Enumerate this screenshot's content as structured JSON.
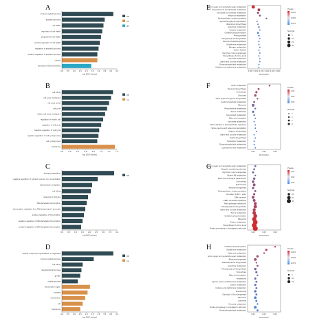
{
  "colors": {
    "BP": "#2f4a53",
    "CC": "#d8914a",
    "MF": "#2aa7c4",
    "axis": "#555555"
  },
  "chart_data": [
    {
      "panel": "A",
      "type": "bar",
      "legend": [
        "BP",
        "CC",
        "MF"
      ],
      "categories": [
        "immune system process",
        "apoptotic process",
        "cell death",
        "regulation of cell death",
        "programmed cell death",
        "positive regulation of cell death",
        "regulation of apoptotic process",
        "positive regulation of apoptotic process",
        "cytosol",
        "structural molecule activity"
      ],
      "values": [
        4.2,
        3.5,
        3.4,
        3.3,
        3.2,
        3.1,
        3.0,
        2.9,
        2.9,
        2.4
      ],
      "groups": [
        "BP",
        "BP",
        "BP",
        "BP",
        "BP",
        "BP",
        "BP",
        "BP",
        "CC",
        "MF"
      ],
      "ticks": [
        "0.0",
        "0.5",
        "1.0",
        "1.5",
        "2.0",
        "2.5",
        "3.0",
        "3.5",
        "4.0",
        "4.5"
      ],
      "xlim": [
        0,
        4.5
      ],
      "xlabel": "-log 10(P values)"
    },
    {
      "panel": "B",
      "type": "bar",
      "legend": [
        "BP",
        "CC"
      ],
      "categories": [
        "cell killing",
        "cell cycle checkpoint",
        "cell cycle arrest",
        "cell cycle",
        "mitotic cell cycle checkpoint",
        "regulation of mitotic cell",
        "regulation of cell cycle",
        "negative regulation of cell cycle",
        "negative regulation of cell cycle process",
        "cell cycle process",
        "membrane"
      ],
      "values": [
        1.3,
        1.25,
        1.2,
        1.15,
        1.1,
        1.05,
        1.0,
        0.95,
        0.93,
        0.9,
        1.35
      ],
      "groups": [
        "BP",
        "BP",
        "BP",
        "BP",
        "BP",
        "BP",
        "BP",
        "BP",
        "BP",
        "BP",
        "CC"
      ],
      "ticks": [
        "0.0",
        "0.2",
        "0.4",
        "0.6",
        "0.8",
        "1.0",
        "1.2",
        "1.4"
      ],
      "xlim": [
        0,
        1.4
      ],
      "xlabel": "-log 10(P values)"
    },
    {
      "panel": "C",
      "type": "bar",
      "legend": [
        "BP"
      ],
      "categories": [
        "biological regulation",
        "negative regulation of cytosolic calcium ion concentration",
        "alpha-tubulin acetylation",
        "cell killing",
        "response to stimulus",
        "DNA-templated transcription",
        "transcription regulation from RNA polymerase II promoter",
        "positive regulation of transcription",
        "negative regulation of DNA-templated transcription",
        "positive regulation of DNA-templated transcription"
      ],
      "values": [
        3.8,
        2.6,
        2.2,
        2.1,
        1.9,
        1.8,
        1.7,
        1.6,
        1.5,
        1.4
      ],
      "groups": [
        "BP",
        "BP",
        "BP",
        "BP",
        "BP",
        "BP",
        "BP",
        "BP",
        "BP",
        "BP"
      ],
      "ticks": [
        "0.0",
        "0.5",
        "1.0",
        "1.5",
        "2.0",
        "2.5",
        "3.0",
        "3.5",
        "4.0"
      ],
      "xlim": [
        0,
        4.0
      ],
      "xlabel": "-log10(P values)"
    },
    {
      "panel": "D",
      "type": "bar",
      "legend": [
        "BP",
        "CC"
      ],
      "categories": [
        "cellular component organization or biogenesis",
        "immune system process",
        "cell killing",
        "developmental process",
        "growth",
        "cellular process",
        "extracellular region",
        "synapse",
        "cell junction",
        "cell",
        "membrane"
      ],
      "values": [
        4.2,
        2.6,
        1.7,
        1.6,
        1.5,
        1.3,
        2.3,
        2.1,
        1.9,
        1.7,
        1.5
      ],
      "groups": [
        "BP",
        "BP",
        "BP",
        "BP",
        "BP",
        "BP",
        "CC",
        "CC",
        "CC",
        "CC",
        "CC"
      ],
      "ticks": [
        "0.0",
        "0.5",
        "1.0",
        "1.5",
        "2.0",
        "2.5",
        "3.0",
        "3.5",
        "4.0",
        "4.5"
      ],
      "xlim": [
        0,
        4.5
      ],
      "xlabel": "-log 10(P values)"
    },
    {
      "panel": "E",
      "type": "scatter",
      "xlabel": "Rich factor",
      "legend_titles": [
        "Pvalue",
        "Number"
      ],
      "gradient_ticks": [
        "0.025",
        "0.050",
        "0.075"
      ],
      "size_ticks": [
        "5",
        "10",
        "15",
        "20"
      ],
      "x_ticks": [
        "0.005",
        "0.010",
        "0.015",
        "0.020",
        "0.025",
        "0.030"
      ],
      "xlim": [
        0,
        0.035
      ],
      "points": [
        {
          "y": "Amino sugar and nucleotide sugar metabolism",
          "x": 0.006,
          "n": 12,
          "p": 0.01
        },
        {
          "y": "Glyoxylate and dicarboxylate metabolism",
          "x": 0.012,
          "n": 8,
          "p": 0.03
        },
        {
          "y": "Ascorbate and aldarate metabolism",
          "x": 0.011,
          "n": 5,
          "p": 0.04
        },
        {
          "y": "Fatty acid degradation",
          "x": 0.013,
          "n": 4,
          "p": 0.05
        },
        {
          "y": "Photosynthesis - antenna proteins",
          "x": 0.02,
          "n": 3,
          "p": 0.06
        },
        {
          "y": "Glycosaminoglycan degradation",
          "x": 0.01,
          "n": 2,
          "p": 0.07
        },
        {
          "y": "Ubiquinone biosynthesis",
          "x": 0.011,
          "n": 2,
          "p": 0.08
        },
        {
          "y": "Galactose metabolism",
          "x": 0.012,
          "n": 3,
          "p": 0.08
        },
        {
          "y": "Tyrosine metabolism",
          "x": 0.013,
          "n": 2,
          "p": 0.09
        },
        {
          "y": "Oxidative phosphorylation",
          "x": 0.011,
          "n": 4,
          "p": 0.09
        },
        {
          "y": "Photosynthesis",
          "x": 0.012,
          "n": 3,
          "p": 0.09
        },
        {
          "y": "Phenylpropanoid biosynthesis",
          "x": 0.013,
          "n": 2,
          "p": 0.09
        },
        {
          "y": "Pentose phosphate pathway",
          "x": 0.012,
          "n": 2,
          "p": 0.09
        },
        {
          "y": "Glutathione metabolism",
          "x": 0.012,
          "n": 2,
          "p": 0.09
        },
        {
          "y": "Nitrogen metabolism",
          "x": 0.013,
          "n": 2,
          "p": 0.09
        },
        {
          "y": "Carbon fixation",
          "x": 0.012,
          "n": 2,
          "p": 0.09
        },
        {
          "y": "Glycolysis / Gluconeogenesis",
          "x": 0.013,
          "n": 2,
          "p": 0.09
        },
        {
          "y": "Biosynthesis of amino acids",
          "x": 0.012,
          "n": 2,
          "p": 0.09
        },
        {
          "y": "Pyruvate metabolism",
          "x": 0.013,
          "n": 2,
          "p": 0.09
        },
        {
          "y": "Starch and sucrose metabolism",
          "x": 0.013,
          "n": 2,
          "p": 0.09
        },
        {
          "y": "Glycerophospholipid metabolism",
          "x": 0.012,
          "n": 2,
          "p": 0.09
        },
        {
          "y": "Cysteine and methionine metabolism",
          "x": 0.012,
          "n": 2,
          "p": 0.09
        }
      ]
    },
    {
      "panel": "F",
      "type": "scatter",
      "xlabel": "Rich factor",
      "legend_titles": [
        "Pvalue",
        "Number"
      ],
      "gradient_ticks": [
        "0.03",
        "0.06",
        "0.09"
      ],
      "size_ticks": [
        "2",
        "4",
        "6",
        "8"
      ],
      "x_ticks": [
        "0.02",
        "0.03",
        "0.04"
      ],
      "xlim": [
        0.015,
        0.045
      ],
      "points": [
        {
          "y": "Sulfur metabolism",
          "x": 0.035,
          "n": 3,
          "p": 0.02
        },
        {
          "y": "Flavonoid biosynthesis",
          "x": 0.025,
          "n": 4,
          "p": 0.03
        },
        {
          "y": "Endocytosis",
          "x": 0.023,
          "n": 5,
          "p": 0.04
        },
        {
          "y": "Glycolysis",
          "x": 0.022,
          "n": 6,
          "p": 0.04
        },
        {
          "y": "Other types of O-glycan biosynthesis",
          "x": 0.024,
          "n": 3,
          "p": 0.05
        },
        {
          "y": "Inositol phosphate metabolism",
          "x": 0.021,
          "n": 4,
          "p": 0.05
        },
        {
          "y": "Ribosome",
          "x": 0.02,
          "n": 8,
          "p": 0.06
        },
        {
          "y": "Phenylalanine metabolism",
          "x": 0.022,
          "n": 3,
          "p": 0.07
        },
        {
          "y": "Purine metabolism",
          "x": 0.02,
          "n": 5,
          "p": 0.07
        },
        {
          "y": "Glycerolipid metabolism",
          "x": 0.021,
          "n": 3,
          "p": 0.08
        },
        {
          "y": "Fatty acid elongation",
          "x": 0.022,
          "n": 2,
          "p": 0.08
        },
        {
          "y": "Ascorbate metabolism",
          "x": 0.021,
          "n": 2,
          "p": 0.08
        },
        {
          "y": "Carbon fixation in photosynthetic organisms",
          "x": 0.022,
          "n": 2,
          "p": 0.09
        },
        {
          "y": "Valine, leucine and isoleucine degradation",
          "x": 0.022,
          "n": 2,
          "p": 0.09
        },
        {
          "y": "Arginine biosynthesis",
          "x": 0.023,
          "n": 2,
          "p": 0.09
        },
        {
          "y": "Starch and sucrose metabolism",
          "x": 0.021,
          "n": 2,
          "p": 0.09
        },
        {
          "y": "Zeatin biosynthesis",
          "x": 0.022,
          "n": 2,
          "p": 0.09
        },
        {
          "y": "Tryptophan metabolism",
          "x": 0.021,
          "n": 2,
          "p": 0.09
        },
        {
          "y": "Glycerophospholipid metabolism",
          "x": 0.021,
          "n": 2,
          "p": 0.09
        },
        {
          "y": "Cyanoamino acid metabolism",
          "x": 0.022,
          "n": 2,
          "p": 0.09
        }
      ]
    },
    {
      "panel": "G",
      "type": "scatter",
      "xlabel": "Rich factor",
      "legend_titles": [
        "Pvalue",
        "Number"
      ],
      "gradient_ticks": [
        "0.02",
        "0.04",
        "0.06"
      ],
      "size_ticks": [
        "10",
        "20",
        "30"
      ],
      "x_ticks": [
        "0.02",
        "0.03",
        "0.04"
      ],
      "xlim": [
        0.015,
        0.045
      ],
      "points": [
        {
          "y": "Amino sugar and nucleotide sugar metabolism",
          "x": 0.022,
          "n": 4,
          "p": 0.07
        },
        {
          "y": "Ubiquitin mediated proteolysis",
          "x": 0.021,
          "n": 4,
          "p": 0.07
        },
        {
          "y": "Glycolysis / Gluconeogenesis",
          "x": 0.02,
          "n": 5,
          "p": 0.06
        },
        {
          "y": "Vitamin B6 metabolism",
          "x": 0.022,
          "n": 3,
          "p": 0.06
        },
        {
          "y": "Plant hormone signal transduction",
          "x": 0.021,
          "n": 6,
          "p": 0.06
        },
        {
          "y": "Endocytosis",
          "x": 0.02,
          "n": 7,
          "p": 0.05
        },
        {
          "y": "Spliceosome",
          "x": 0.021,
          "n": 8,
          "p": 0.05
        },
        {
          "y": "Ribosome biogenesis",
          "x": 0.02,
          "n": 6,
          "p": 0.05
        },
        {
          "y": "Photosynthesis - antenna proteins",
          "x": 0.022,
          "n": 4,
          "p": 0.05
        },
        {
          "y": "Circadian rhythm - plant",
          "x": 0.021,
          "n": 5,
          "p": 0.04
        },
        {
          "y": "RNA transport",
          "x": 0.02,
          "n": 9,
          "p": 0.04
        },
        {
          "y": "mRNA surveillance pathway",
          "x": 0.021,
          "n": 8,
          "p": 0.04
        },
        {
          "y": "Plant-pathogen interaction",
          "x": 0.022,
          "n": 10,
          "p": 0.03
        },
        {
          "y": "Phenylpropanoid biosynthesis",
          "x": 0.022,
          "n": 12,
          "p": 0.03
        },
        {
          "y": "Starch and sucrose metabolism",
          "x": 0.021,
          "n": 10,
          "p": 0.03
        },
        {
          "y": "Purine metabolism",
          "x": 0.021,
          "n": 14,
          "p": 0.02
        },
        {
          "y": "Oxidative phosphorylation",
          "x": 0.022,
          "n": 16,
          "p": 0.01
        },
        {
          "y": "Ribosome",
          "x": 0.021,
          "n": 20,
          "p": 0.01
        },
        {
          "y": "Carbon metabolism",
          "x": 0.022,
          "n": 22,
          "p": 0.005
        },
        {
          "y": "Biosynthesis of amino acids",
          "x": 0.021,
          "n": 24,
          "p": 0.004
        },
        {
          "y": "Protein processing in endoplasmic reticulum",
          "x": 0.022,
          "n": 26,
          "p": 0.003
        }
      ]
    },
    {
      "panel": "H",
      "type": "scatter",
      "xlabel": "Rich factor",
      "legend_titles": [
        "Pvalue",
        "Number"
      ],
      "gradient_ticks": [
        "0.025",
        "0.050",
        "0.075"
      ],
      "size_ticks": [
        "5",
        "10",
        "15"
      ],
      "x_ticks": [
        "0.02",
        "0.03",
        "0.04"
      ],
      "xlim": [
        0.015,
        0.045
      ],
      "points": [
        {
          "y": "Oxidative phosphorylation",
          "x": 0.04,
          "n": 3,
          "p": 0.01
        },
        {
          "y": "Glutathione metabolism",
          "x": 0.032,
          "n": 5,
          "p": 0.02
        },
        {
          "y": "Fatty acid metabolism",
          "x": 0.03,
          "n": 3,
          "p": 0.03
        },
        {
          "y": "Amino sugar and nucleotide sugar metabolism",
          "x": 0.024,
          "n": 6,
          "p": 0.04
        },
        {
          "y": "Ribosome biogenesis",
          "x": 0.022,
          "n": 8,
          "p": 0.04
        },
        {
          "y": "Sesquiterpenoid biosynthesis",
          "x": 0.023,
          "n": 3,
          "p": 0.05
        },
        {
          "y": "Galactose metabolism",
          "x": 0.024,
          "n": 4,
          "p": 0.05
        },
        {
          "y": "Phenylpropanoid biosynthesis",
          "x": 0.022,
          "n": 6,
          "p": 0.06
        },
        {
          "y": "Endocytosis",
          "x": 0.023,
          "n": 5,
          "p": 0.06
        },
        {
          "y": "Fatty acid elongation",
          "x": 0.024,
          "n": 3,
          "p": 0.07
        },
        {
          "y": "Proteasome",
          "x": 0.022,
          "n": 5,
          "p": 0.07
        },
        {
          "y": "Glycine, serine and threonine metabolism",
          "x": 0.023,
          "n": 4,
          "p": 0.07
        },
        {
          "y": "Carbon metabolism",
          "x": 0.022,
          "n": 5,
          "p": 0.08
        },
        {
          "y": "Cysteine and methionine metabolism",
          "x": 0.023,
          "n": 4,
          "p": 0.08
        },
        {
          "y": "Spliceosome",
          "x": 0.022,
          "n": 6,
          "p": 0.08
        },
        {
          "y": "Glycolysis / Gluconeogenesis",
          "x": 0.023,
          "n": 4,
          "p": 0.08
        },
        {
          "y": "Ribosome",
          "x": 0.022,
          "n": 7,
          "p": 0.09
        },
        {
          "y": "Lysosome",
          "x": 0.023,
          "n": 4,
          "p": 0.09
        },
        {
          "y": "Pyruvate metabolism",
          "x": 0.024,
          "n": 3,
          "p": 0.09
        },
        {
          "y": "Protein processing in endoplasmic reticulum",
          "x": 0.022,
          "n": 8,
          "p": 0.09
        },
        {
          "y": "Glycerophospholipid metabolism",
          "x": 0.024,
          "n": 4,
          "p": 0.09
        }
      ]
    }
  ]
}
